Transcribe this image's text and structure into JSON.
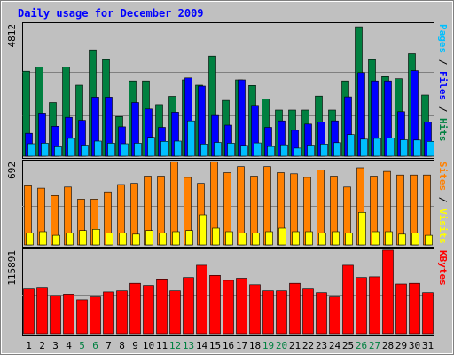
{
  "chart_data": {
    "type": "bar",
    "title": "Daily usage for December 2009",
    "days": [
      "1",
      "2",
      "3",
      "4",
      "5",
      "6",
      "7",
      "8",
      "9",
      "10",
      "11",
      "12",
      "13",
      "14",
      "15",
      "16",
      "17",
      "18",
      "19",
      "20",
      "21",
      "22",
      "23",
      "24",
      "25",
      "26",
      "27",
      "28",
      "29",
      "30",
      "31"
    ],
    "weekend_days": [
      "5",
      "6",
      "12",
      "13",
      "19",
      "20",
      "26",
      "27"
    ],
    "panels": [
      {
        "name": "hits-files-pages",
        "max_label": "4812",
        "ylim": [
          0,
          4812
        ],
        "right_labels": [
          {
            "text": "Pages",
            "color": "#00c0ff"
          },
          {
            "text": " / ",
            "color": "#000000"
          },
          {
            "text": "Files",
            "color": "#0000ff"
          },
          {
            "text": " / ",
            "color": "#000000"
          },
          {
            "text": "Hits",
            "color": "#008040"
          }
        ],
        "series": [
          {
            "name": "Hits",
            "color": "#008040",
            "values": [
              3150,
              3300,
              1990,
              3300,
              2630,
              3940,
              3580,
              1470,
              2790,
              2790,
              1910,
              2220,
              2830,
              2630,
              3710,
              2070,
              2830,
              2620,
              2120,
              1710,
              1710,
              1710,
              2230,
              1710,
              2790,
              4800,
              3580,
              2950,
              2870,
              3800,
              2270
            ]
          },
          {
            "name": "Files",
            "color": "#0000ff",
            "values": [
              850,
              1600,
              1110,
              1440,
              1330,
              2190,
              2190,
              1090,
              1990,
              1750,
              1070,
              1630,
              2900,
              2600,
              1510,
              1150,
              2830,
              1880,
              1070,
              1310,
              960,
              1190,
              1260,
              1310,
              2200,
              3100,
              2790,
              2790,
              1650,
              3170,
              1260
            ]
          },
          {
            "name": "Pages",
            "color": "#00c0ff",
            "values": [
              460,
              480,
              350,
              660,
              410,
              560,
              480,
              460,
              480,
              700,
              550,
              560,
              1310,
              450,
              510,
              480,
              400,
              490,
              360,
              420,
              300,
              410,
              450,
              500,
              800,
              630,
              660,
              680,
              610,
              600,
              550
            ]
          }
        ]
      },
      {
        "name": "visits-sites",
        "max_label": "692",
        "ylim": [
          0,
          692
        ],
        "right_labels": [
          {
            "text": "Sites",
            "color": "#ff8000"
          },
          {
            "text": " / ",
            "color": "#000000"
          },
          {
            "text": "Visits",
            "color": "#ffff00"
          }
        ],
        "series": [
          {
            "name": "Visits",
            "color": "#ff8000",
            "values": [
              490,
              470,
              410,
              480,
              380,
              380,
              440,
              500,
              510,
              570,
              570,
              690,
              560,
              510,
              690,
              600,
              650,
              570,
              650,
              600,
              590,
              560,
              620,
              570,
              480,
              640,
              570,
              610,
              580,
              580,
              580
            ]
          },
          {
            "name": "Sites",
            "color": "#ffff00",
            "values": [
              100,
              110,
              80,
              100,
              120,
              130,
              100,
              100,
              90,
              120,
              100,
              110,
              120,
              250,
              140,
              110,
              100,
              100,
              110,
              140,
              110,
              110,
              100,
              110,
              100,
              270,
              110,
              110,
              90,
              100,
              80
            ]
          }
        ]
      },
      {
        "name": "kbytes",
        "max_label": "115891",
        "ylim": [
          0,
          115891
        ],
        "right_labels": [
          {
            "text": "KBytes",
            "color": "#ff0000"
          }
        ],
        "series": [
          {
            "name": "KBytes",
            "color": "#ff0000",
            "values": [
              62000,
              64500,
              53000,
              55000,
              47000,
              51000,
              58000,
              59500,
              70000,
              67000,
              76000,
              59500,
              78000,
              95000,
              81000,
              74000,
              77000,
              68000,
              59500,
              59500,
              70000,
              62000,
              57000,
              51000,
              95000,
              78000,
              79000,
              115891,
              69000,
              70000,
              57000
            ]
          }
        ]
      }
    ]
  }
}
